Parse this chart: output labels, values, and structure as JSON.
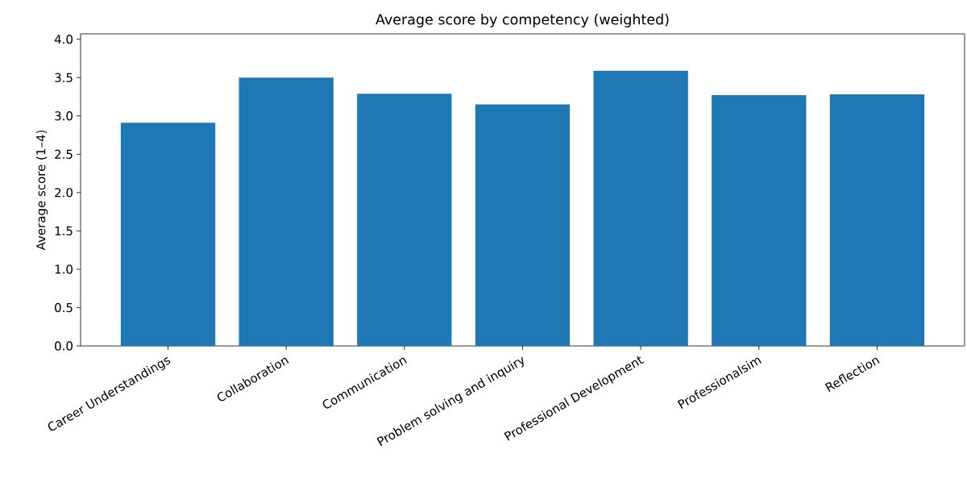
{
  "chart_data": {
    "type": "bar",
    "title": "Average score by competency (weighted)",
    "ylabel": "Average score (1–4)",
    "categories": [
      "Career Understandings",
      "Collaboration",
      "Communication",
      "Problem solving and inquiry",
      "Professional Development",
      "Professionalsim",
      "Reflection"
    ],
    "values": [
      2.91,
      3.5,
      3.29,
      3.15,
      3.59,
      3.27,
      3.28
    ],
    "color": "#1f77b4",
    "ylim": [
      0,
      4.07
    ],
    "yticks": [
      {
        "value": 0,
        "label": "0.0"
      },
      {
        "value": 0.5,
        "label": "0.5"
      },
      {
        "value": 1,
        "label": "1.0"
      },
      {
        "value": 1.5,
        "label": "1.5"
      },
      {
        "value": 2,
        "label": "2.0"
      },
      {
        "value": 2.5,
        "label": "2.5"
      },
      {
        "value": 3,
        "label": "3.0"
      },
      {
        "value": 3.5,
        "label": "3.5"
      },
      {
        "value": 4,
        "label": "4.0"
      }
    ],
    "grid": false
  }
}
